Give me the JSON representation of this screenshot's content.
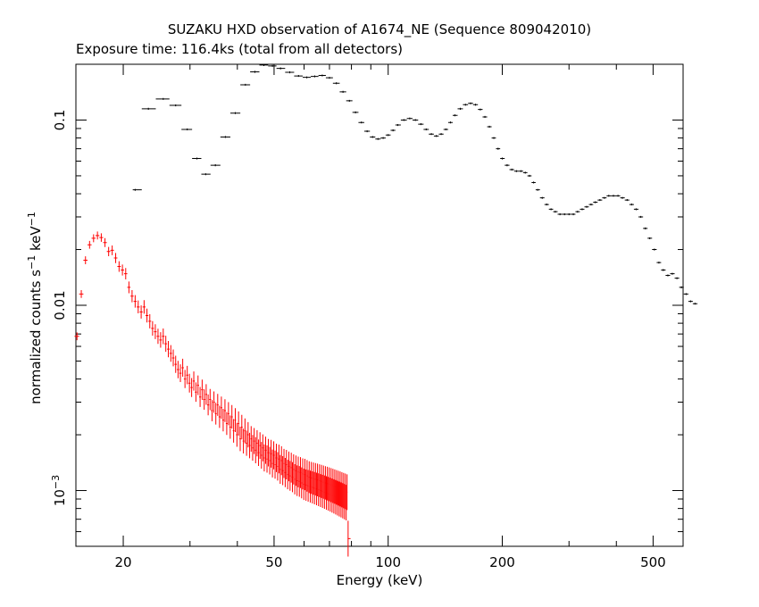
{
  "chart_data": {
    "type": "scatter",
    "title": "SUZAKU HXD observation of A1674_NE (Sequence 809042010)",
    "subtitle": "Exposure time: 116.4ks (total from all detectors)",
    "xlabel": "Energy (keV)",
    "ylabel": {
      "base": "normalized counts s",
      "exp1": "−1",
      "mid": " keV",
      "exp2": "−1"
    },
    "x_scale": "log",
    "y_scale": "log",
    "xlim": [
      15,
      600
    ],
    "ylim": [
      0.0005,
      0.2
    ],
    "x_ticks": [
      {
        "value": 20,
        "label": "20"
      },
      {
        "value": 50,
        "label": "50"
      },
      {
        "value": 100,
        "label": "100"
      },
      {
        "value": 200,
        "label": "200"
      },
      {
        "value": 500,
        "label": "500"
      }
    ],
    "y_ticks": [
      {
        "value": 0.1,
        "label": "0.1"
      },
      {
        "value": 0.01,
        "label": "0.01"
      },
      {
        "value": 0.001,
        "label_base": "10",
        "label_exp": "−3"
      }
    ],
    "grid": false,
    "legend": "none",
    "series": [
      {
        "color": "#000000",
        "points": [
          [
            21.5,
            0.042
          ],
          [
            23.3,
            0.115
          ],
          [
            25.5,
            0.13
          ],
          [
            27.5,
            0.12
          ],
          [
            29.5,
            0.089
          ],
          [
            31.3,
            0.062
          ],
          [
            33,
            0.051
          ],
          [
            35,
            0.057
          ],
          [
            37.2,
            0.081
          ],
          [
            39.5,
            0.109
          ],
          [
            42,
            0.155
          ],
          [
            44.5,
            0.182
          ],
          [
            47,
            0.198
          ],
          [
            49.5,
            0.196
          ],
          [
            52,
            0.19
          ],
          [
            55,
            0.181
          ],
          [
            58,
            0.173
          ],
          [
            61,
            0.17
          ],
          [
            64,
            0.172
          ],
          [
            67,
            0.174
          ],
          [
            70,
            0.169
          ],
          [
            73,
            0.158
          ],
          [
            76,
            0.142
          ],
          [
            79,
            0.127
          ],
          [
            82,
            0.11
          ],
          [
            85,
            0.097
          ],
          [
            88,
            0.087
          ],
          [
            91,
            0.081
          ],
          [
            94,
            0.079
          ],
          [
            97,
            0.08
          ],
          [
            100,
            0.083
          ],
          [
            103,
            0.088
          ],
          [
            106,
            0.094
          ],
          [
            110,
            0.1
          ],
          [
            114,
            0.102
          ],
          [
            118,
            0.1
          ],
          [
            122,
            0.095
          ],
          [
            126,
            0.089
          ],
          [
            130,
            0.084
          ],
          [
            134,
            0.082
          ],
          [
            138,
            0.084
          ],
          [
            142,
            0.089
          ],
          [
            146,
            0.097
          ],
          [
            150,
            0.106
          ],
          [
            155,
            0.115
          ],
          [
            160,
            0.121
          ],
          [
            165,
            0.123
          ],
          [
            170,
            0.121
          ],
          [
            175,
            0.114
          ],
          [
            180,
            0.104
          ],
          [
            185,
            0.092
          ],
          [
            190,
            0.08
          ],
          [
            195,
            0.07
          ],
          [
            200,
            0.062
          ],
          [
            206,
            0.057
          ],
          [
            212,
            0.054
          ],
          [
            218,
            0.053
          ],
          [
            224,
            0.053
          ],
          [
            230,
            0.052
          ],
          [
            236,
            0.05
          ],
          [
            242,
            0.046
          ],
          [
            248,
            0.042
          ],
          [
            255,
            0.038
          ],
          [
            262,
            0.035
          ],
          [
            269,
            0.033
          ],
          [
            276,
            0.032
          ],
          [
            284,
            0.031
          ],
          [
            292,
            0.031
          ],
          [
            300,
            0.031
          ],
          [
            308,
            0.031
          ],
          [
            316,
            0.032
          ],
          [
            325,
            0.033
          ],
          [
            334,
            0.034
          ],
          [
            343,
            0.035
          ],
          [
            352,
            0.036
          ],
          [
            362,
            0.037
          ],
          [
            372,
            0.038
          ],
          [
            382,
            0.039
          ],
          [
            393,
            0.039
          ],
          [
            404,
            0.039
          ],
          [
            415,
            0.038
          ],
          [
            427,
            0.037
          ],
          [
            439,
            0.035
          ],
          [
            451,
            0.033
          ],
          [
            464,
            0.03
          ],
          [
            477,
            0.026
          ],
          [
            490,
            0.023
          ],
          [
            504,
            0.02
          ],
          [
            518,
            0.017
          ],
          [
            532,
            0.0155
          ],
          [
            547,
            0.0145
          ],
          [
            562,
            0.0148
          ],
          [
            578,
            0.014
          ],
          [
            594,
            0.0125
          ],
          [
            611,
            0.0115
          ],
          [
            628,
            0.0105
          ],
          [
            645,
            0.0102
          ]
        ]
      },
      {
        "color": "#ff0000",
        "points": [
          [
            15.1,
            0.0068
          ],
          [
            15.5,
            0.0115
          ],
          [
            15.9,
            0.0175
          ],
          [
            16.3,
            0.0212
          ],
          [
            16.7,
            0.023
          ],
          [
            17.1,
            0.0238
          ],
          [
            17.5,
            0.0232
          ],
          [
            17.9,
            0.0218
          ],
          [
            18.3,
            0.0195
          ],
          [
            18.7,
            0.0198
          ],
          [
            19.1,
            0.018
          ],
          [
            19.5,
            0.0162
          ],
          [
            19.9,
            0.0155
          ],
          [
            20.3,
            0.0148
          ],
          [
            20.7,
            0.0125
          ],
          [
            21.1,
            0.0112
          ],
          [
            21.5,
            0.0105
          ],
          [
            21.9,
            0.0098
          ],
          [
            22.3,
            0.0092
          ],
          [
            22.7,
            0.0098
          ],
          [
            23.1,
            0.0088
          ],
          [
            23.5,
            0.0082
          ],
          [
            23.9,
            0.0075
          ],
          [
            24.3,
            0.0072
          ],
          [
            24.7,
            0.0068
          ],
          [
            25.1,
            0.0065
          ],
          [
            25.5,
            0.0068
          ],
          [
            25.9,
            0.0062
          ],
          [
            26.3,
            0.0058
          ],
          [
            26.7,
            0.0055
          ],
          [
            27.1,
            0.0052
          ],
          [
            27.5,
            0.0048
          ],
          [
            27.9,
            0.0045
          ],
          [
            28.3,
            0.0043
          ],
          [
            28.7,
            0.0046
          ],
          [
            29.1,
            0.004
          ],
          [
            29.5,
            0.0042
          ],
          [
            29.9,
            0.0038
          ],
          [
            30.3,
            0.0036
          ],
          [
            30.7,
            0.0039
          ],
          [
            31.1,
            0.0034
          ],
          [
            31.5,
            0.0037
          ],
          [
            31.9,
            0.0032
          ],
          [
            32.3,
            0.0035
          ],
          [
            32.7,
            0.0031
          ],
          [
            33.1,
            0.0033
          ],
          [
            33.5,
            0.0029
          ],
          [
            33.9,
            0.0031
          ],
          [
            34.3,
            0.0027
          ],
          [
            34.7,
            0.003
          ],
          [
            35.1,
            0.0026
          ],
          [
            35.5,
            0.0029
          ],
          [
            35.9,
            0.0025
          ],
          [
            36.3,
            0.0028
          ],
          [
            36.7,
            0.0024
          ],
          [
            37.1,
            0.0027
          ],
          [
            37.5,
            0.0023
          ],
          [
            37.9,
            0.0026
          ],
          [
            38.3,
            0.0022
          ],
          [
            38.7,
            0.0025
          ],
          [
            39.1,
            0.0021
          ],
          [
            39.5,
            0.0024
          ],
          [
            39.9,
            0.002
          ],
          [
            40.3,
            0.0023
          ],
          [
            40.7,
            0.0019
          ],
          [
            41.1,
            0.0022
          ],
          [
            41.5,
            0.00185
          ],
          [
            41.9,
            0.0021
          ],
          [
            42.3,
            0.0018
          ],
          [
            42.7,
            0.002
          ],
          [
            43.1,
            0.00175
          ],
          [
            43.5,
            0.0019
          ],
          [
            43.9,
            0.0017
          ],
          [
            44.3,
            0.00185
          ],
          [
            44.7,
            0.00165
          ],
          [
            45.1,
            0.0018
          ],
          [
            45.5,
            0.0016
          ],
          [
            45.9,
            0.00175
          ],
          [
            46.3,
            0.00155
          ],
          [
            46.7,
            0.0017
          ],
          [
            47.1,
            0.0015
          ],
          [
            47.5,
            0.00165
          ],
          [
            47.9,
            0.00148
          ],
          [
            48.3,
            0.0016
          ],
          [
            48.7,
            0.00145
          ],
          [
            49.1,
            0.00158
          ],
          [
            49.5,
            0.0014
          ],
          [
            49.9,
            0.00155
          ],
          [
            50.3,
            0.00138
          ],
          [
            50.7,
            0.0015
          ],
          [
            51.1,
            0.00135
          ],
          [
            51.5,
            0.00148
          ],
          [
            51.9,
            0.0013
          ],
          [
            52.3,
            0.00145
          ],
          [
            52.7,
            0.00128
          ],
          [
            53.1,
            0.0014
          ],
          [
            53.5,
            0.00125
          ],
          [
            53.9,
            0.00138
          ],
          [
            54.3,
            0.00122
          ],
          [
            54.7,
            0.00135
          ],
          [
            55.1,
            0.0012
          ],
          [
            55.5,
            0.00133
          ],
          [
            55.9,
            0.00118
          ],
          [
            56.3,
            0.0013
          ],
          [
            56.7,
            0.00115
          ],
          [
            57.1,
            0.00128
          ],
          [
            57.5,
            0.00113
          ],
          [
            57.9,
            0.00126
          ],
          [
            58.3,
            0.00112
          ],
          [
            58.7,
            0.00125
          ],
          [
            59.1,
            0.0011
          ],
          [
            59.5,
            0.00123
          ],
          [
            59.9,
            0.00108
          ],
          [
            60.3,
            0.00122
          ],
          [
            60.7,
            0.00107
          ],
          [
            61.1,
            0.0012
          ],
          [
            61.5,
            0.00106
          ],
          [
            61.9,
            0.00118
          ],
          [
            62.3,
            0.00105
          ],
          [
            62.7,
            0.00117
          ],
          [
            63.1,
            0.00104
          ],
          [
            63.5,
            0.00116
          ],
          [
            63.9,
            0.00103
          ],
          [
            64.3,
            0.00115
          ],
          [
            64.7,
            0.00102
          ],
          [
            65.1,
            0.00114
          ],
          [
            65.5,
            0.00101
          ],
          [
            65.9,
            0.00113
          ],
          [
            66.3,
            0.001
          ],
          [
            66.7,
            0.00112
          ],
          [
            67.1,
            0.00099
          ],
          [
            67.5,
            0.00111
          ],
          [
            67.9,
            0.00098
          ],
          [
            68.3,
            0.0011
          ],
          [
            68.7,
            0.00097
          ],
          [
            69.1,
            0.00109
          ],
          [
            69.5,
            0.00096
          ],
          [
            69.9,
            0.00108
          ],
          [
            70.3,
            0.00095
          ],
          [
            70.7,
            0.00107
          ],
          [
            71.1,
            0.00094
          ],
          [
            71.5,
            0.00106
          ],
          [
            71.9,
            0.00093
          ],
          [
            72.3,
            0.00105
          ],
          [
            72.7,
            0.00092
          ],
          [
            73.1,
            0.00104
          ],
          [
            73.5,
            0.00091
          ],
          [
            73.9,
            0.00103
          ],
          [
            74.3,
            0.0009
          ],
          [
            74.7,
            0.00102
          ],
          [
            75.1,
            0.00089
          ],
          [
            75.5,
            0.00101
          ],
          [
            75.9,
            0.00088
          ],
          [
            76.3,
            0.001
          ],
          [
            76.7,
            0.00087
          ],
          [
            77.1,
            0.00099
          ],
          [
            77.5,
            0.00086
          ],
          [
            77.9,
            0.00098
          ],
          [
            78.4,
            0.00055
          ]
        ]
      }
    ]
  }
}
